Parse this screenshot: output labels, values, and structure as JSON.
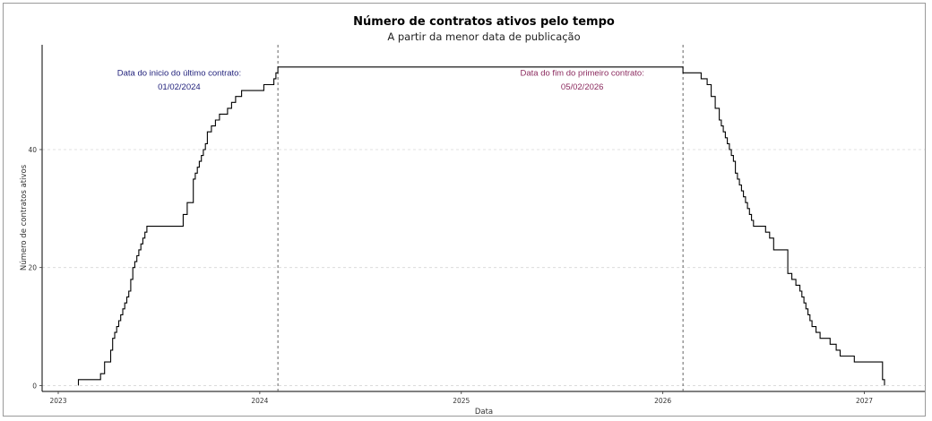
{
  "chart_data": {
    "type": "line",
    "title": "Número de contratos ativos pelo tempo",
    "subtitle": "A partir da menor data de publicação",
    "xlabel": "Data",
    "ylabel": "Número de contratos ativos",
    "xlim": [
      2022.92,
      2027.3
    ],
    "ylim": [
      -1,
      57
    ],
    "x_ticks": [
      2023,
      2024,
      2025,
      2026,
      2027
    ],
    "x_tick_labels": [
      "2023",
      "2024",
      "2025",
      "2026",
      "2027"
    ],
    "y_ticks": [
      0,
      20,
      40
    ],
    "y_tick_labels": [
      "0",
      "20",
      "40"
    ],
    "grid": "horizontal dashed",
    "series": [
      {
        "x": [
          2023.1,
          2023.21,
          2023.23,
          2023.26,
          2023.27,
          2023.28,
          2023.29,
          2023.3,
          2023.31,
          2023.32,
          2023.33,
          2023.34,
          2023.35,
          2023.36,
          2023.37,
          2023.38,
          2023.39,
          2023.4,
          2023.41,
          2023.42,
          2023.43,
          2023.44,
          2023.45,
          2023.46,
          2023.47,
          2023.48,
          2023.49,
          2023.51,
          2023.53,
          2023.62,
          2023.64,
          2023.67,
          2023.68,
          2023.69,
          2023.7,
          2023.71,
          2023.72,
          2023.73,
          2023.74,
          2023.76,
          2023.78,
          2023.8,
          2023.82,
          2023.84,
          2023.86,
          2023.87,
          2023.88,
          2023.89,
          2023.91,
          2023.95,
          2024.02,
          2024.07,
          2024.08,
          2024.09,
          2026.1,
          2026.19,
          2026.22,
          2026.24,
          2026.26,
          2026.28,
          2026.29,
          2026.3,
          2026.31,
          2026.32,
          2026.33,
          2026.34,
          2026.35,
          2026.36,
          2026.37,
          2026.38,
          2026.39,
          2026.4,
          2026.41,
          2026.42,
          2026.43,
          2026.44,
          2026.45,
          2026.46,
          2026.47,
          2026.48,
          2026.49,
          2026.51,
          2026.53,
          2026.55,
          2026.62,
          2026.64,
          2026.66,
          2026.68,
          2026.69,
          2026.7,
          2026.71,
          2026.72,
          2026.73,
          2026.74,
          2026.76,
          2026.78,
          2026.8,
          2026.83,
          2026.86,
          2026.88,
          2026.93,
          2026.95,
          2026.97,
          2027.09,
          2027.1
        ],
        "y": [
          1,
          2,
          4,
          6,
          8,
          9,
          10,
          11,
          12,
          13,
          14,
          15,
          16,
          18,
          20,
          21,
          22,
          23,
          24,
          25,
          26,
          27,
          27,
          27,
          27,
          27,
          27,
          27,
          27,
          29,
          31,
          35,
          36,
          37,
          38,
          39,
          40,
          41,
          43,
          44,
          45,
          46,
          46,
          47,
          48,
          48,
          49,
          49,
          50,
          50,
          51,
          52,
          53,
          54,
          53,
          52,
          51,
          49,
          47,
          45,
          44,
          43,
          42,
          41,
          40,
          39,
          38,
          36,
          35,
          34,
          33,
          32,
          31,
          30,
          29,
          28,
          27,
          27,
          27,
          27,
          27,
          26,
          25,
          23,
          19,
          18,
          17,
          16,
          15,
          14,
          13,
          12,
          11,
          10,
          9,
          8,
          8,
          7,
          6,
          5,
          5,
          4,
          4,
          1,
          0
        ]
      }
    ],
    "vlines": [
      2024.09,
      2026.1
    ],
    "annotations": [
      {
        "text": "Data do inicio do último contrato:",
        "x": 2023.6,
        "y": 52.5,
        "color": "#1f1f7a"
      },
      {
        "text": "01/02/2024",
        "x": 2023.6,
        "y": 50.2,
        "color": "#1f1f7a"
      },
      {
        "text": "Data do fim do primeiro contrato:",
        "x": 2025.6,
        "y": 52.5,
        "color": "#8b2a5e"
      },
      {
        "text": "05/02/2026",
        "x": 2025.6,
        "y": 50.2,
        "color": "#8b2a5e"
      }
    ]
  }
}
